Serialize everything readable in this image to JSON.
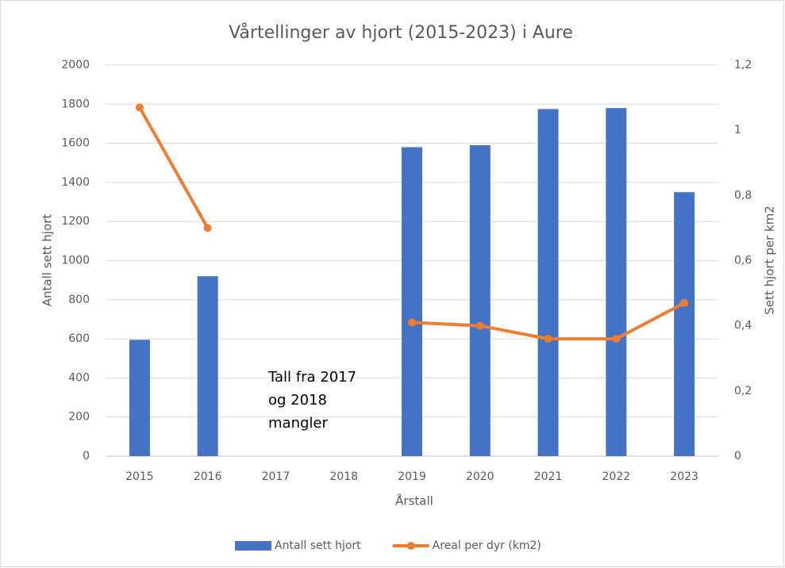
{
  "chart_data": {
    "type": "combo",
    "title": "Vårtellinger av hjort (2015-2023) i Aure",
    "x_label": "Årstall",
    "y_label": "Antall sett hjort",
    "y2_label": "Sett hjort per km2",
    "categories": [
      "2015",
      "2016",
      "2017",
      "2018",
      "2019",
      "2020",
      "2021",
      "2022",
      "2023"
    ],
    "series": [
      {
        "name": "Antall sett hjort",
        "type": "bar",
        "color": "#4472c4",
        "values": [
          595,
          920,
          null,
          null,
          1580,
          1590,
          1775,
          1780,
          1350
        ]
      },
      {
        "name": "Areal per dyr (km2)",
        "type": "line",
        "axis": "y2",
        "color": "#ed7d31",
        "values": [
          1.07,
          0.7,
          null,
          null,
          0.41,
          0.4,
          0.36,
          0.36,
          0.47
        ]
      }
    ],
    "ylim": [
      0,
      2000
    ],
    "yticks": [
      0,
      200,
      400,
      600,
      800,
      1000,
      1200,
      1400,
      1600,
      1800,
      2000
    ],
    "y2lim": [
      0,
      1.2
    ],
    "y2ticks": [
      0,
      {
        "value": 0.2,
        "label": "0,2"
      },
      {
        "value": 0.4,
        "label": "0,4"
      },
      {
        "value": 0.6,
        "label": "0,6"
      },
      {
        "value": 0.8,
        "label": "0,8"
      },
      1,
      {
        "value": 1.2,
        "label": "1,2"
      }
    ],
    "grid": true,
    "legend": "bottom",
    "annotation": [
      "Tall fra 2017",
      "og 2018",
      "mangler"
    ]
  }
}
